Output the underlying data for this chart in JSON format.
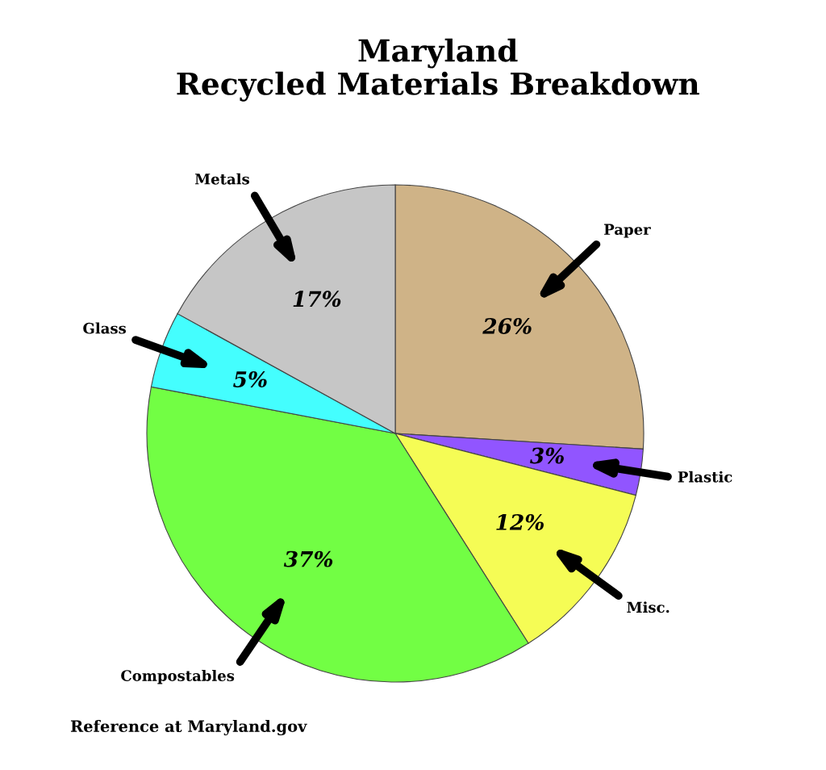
{
  "chart_data": {
    "type": "pie",
    "title": "Maryland\nRecycled Materials Breakdown",
    "categories": [
      "Paper",
      "Plastic",
      "Misc.",
      "Compostables",
      "Glass",
      "Metals"
    ],
    "values": [
      26,
      3,
      12,
      37,
      5,
      17
    ],
    "value_labels": [
      "26%",
      "3%",
      "12%",
      "37%",
      "5%",
      "17%"
    ],
    "colors": [
      "#cfb387",
      "#9155ff",
      "#f5fc55",
      "#72fe44",
      "#44fefe",
      "#c6c6c6"
    ],
    "annotations": [
      "Reference at Maryland.gov"
    ]
  }
}
